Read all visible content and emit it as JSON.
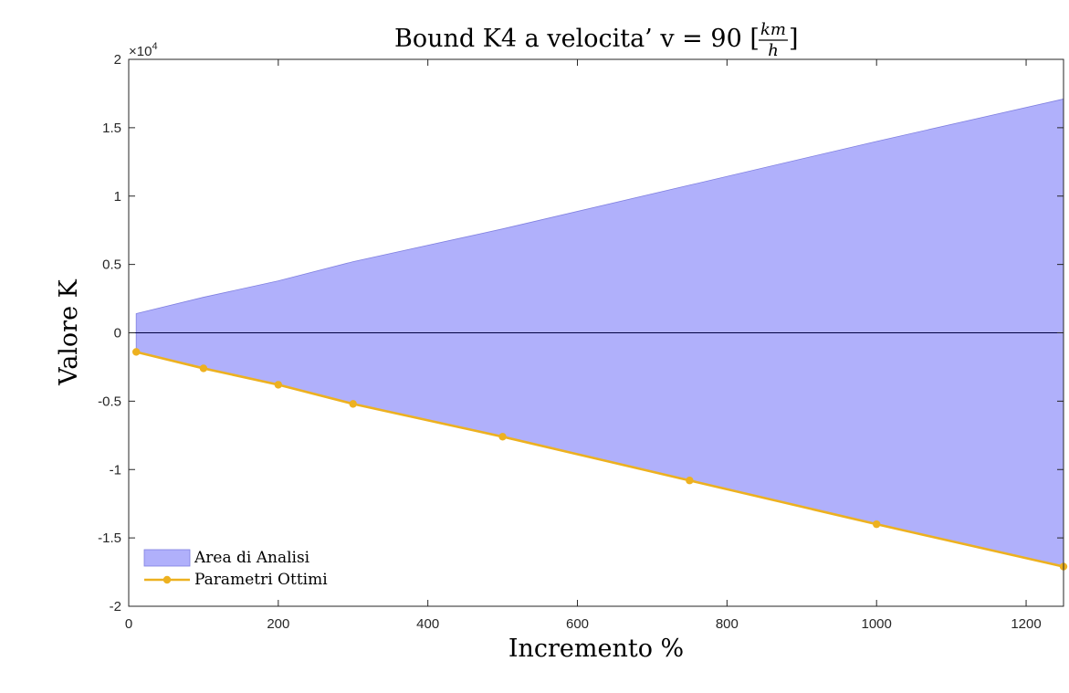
{
  "chart_data": {
    "type": "area",
    "title": {
      "prefix": "Bound K4 a velocita’ v = 90 [",
      "frac_num": "km",
      "frac_den": "h",
      "suffix": "]"
    },
    "xlabel": "Incremento %",
    "ylabel": "Valore K",
    "y_exponent_label": "×10",
    "y_exponent": "4",
    "xlim": [
      0,
      1250
    ],
    "ylim": [
      -2,
      2
    ],
    "y_scale_factor": 10000,
    "xticks": [
      "0",
      "200",
      "400",
      "600",
      "800",
      "1000",
      "1200"
    ],
    "yticks": [
      "-2",
      "-1.5",
      "-1",
      "-0.5",
      "0",
      "0.5",
      "1",
      "1.5",
      "2"
    ],
    "grid": false,
    "legend_position": "bottom-left",
    "series": [
      {
        "name": "Area di Analisi",
        "kind": "area",
        "color": "#b0b0fb",
        "edge_color": "#8080e0",
        "x": [
          10,
          100,
          200,
          300,
          500,
          750,
          1000,
          1250
        ],
        "upper": [
          0.14,
          0.26,
          0.38,
          0.52,
          0.76,
          1.08,
          1.4,
          1.71
        ],
        "lower": [
          -0.14,
          -0.26,
          -0.38,
          -0.52,
          -0.76,
          -1.08,
          -1.4,
          -1.71
        ]
      },
      {
        "name": "Parametri Ottimi",
        "kind": "line",
        "color": "#edb120",
        "x": [
          10,
          100,
          200,
          300,
          500,
          750,
          1000,
          1250
        ],
        "y": [
          -0.14,
          -0.26,
          -0.38,
          -0.52,
          -0.76,
          -1.08,
          -1.4,
          -1.71
        ]
      }
    ],
    "zero_line": true
  }
}
